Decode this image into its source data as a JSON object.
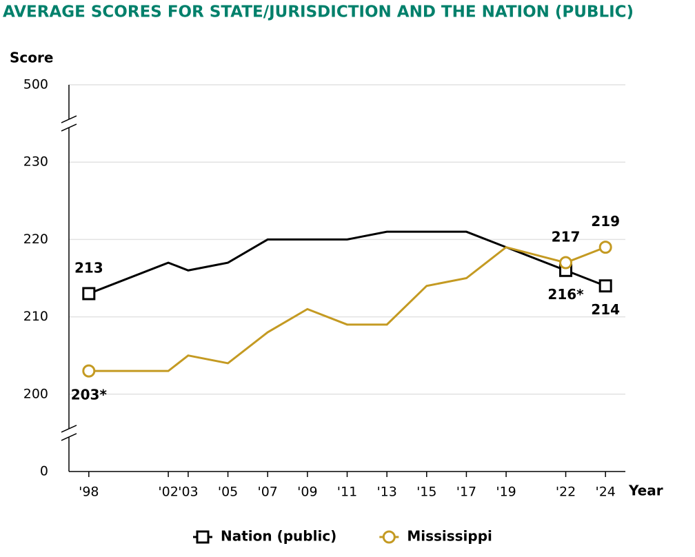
{
  "chart_data": {
    "type": "line",
    "title": "AVERAGE SCORES FOR STATE/JURISDICTION AND THE NATION (PUBLIC)",
    "y_label": "Score",
    "x_label": "Year",
    "x": [
      1998,
      2002,
      2003,
      2005,
      2007,
      2009,
      2011,
      2013,
      2015,
      2017,
      2019,
      2022,
      2024
    ],
    "xlim": [
      1997,
      2025
    ],
    "xticks": [
      {
        "value": 1998,
        "label": "'98"
      },
      {
        "value": 2002,
        "label": "'02"
      },
      {
        "value": 2003,
        "label": "'03"
      },
      {
        "value": 2005,
        "label": "'05"
      },
      {
        "value": 2007,
        "label": "'07"
      },
      {
        "value": 2009,
        "label": "'09"
      },
      {
        "value": 2011,
        "label": "'11"
      },
      {
        "value": 2013,
        "label": "'13"
      },
      {
        "value": 2015,
        "label": "'15"
      },
      {
        "value": 2017,
        "label": "'17"
      },
      {
        "value": 2019,
        "label": "'19"
      },
      {
        "value": 2022,
        "label": "'22"
      },
      {
        "value": 2024,
        "label": "'24"
      }
    ],
    "ylim": [
      0,
      500
    ],
    "yticks": [
      0,
      200,
      210,
      220,
      230,
      500
    ],
    "axis_breaks": [
      [
        0,
        200
      ],
      [
        230,
        500
      ]
    ],
    "grid": true,
    "series": [
      {
        "name": "Nation (public)",
        "color": "#000000",
        "marker": "square",
        "values": [
          213,
          217,
          216,
          217,
          220,
          220,
          220,
          221,
          221,
          221,
          219,
          216,
          214
        ],
        "value_labels": [
          "213",
          null,
          null,
          null,
          null,
          null,
          null,
          null,
          null,
          null,
          null,
          "216*",
          "214"
        ]
      },
      {
        "name": "Mississippi",
        "color": "#c49a22",
        "marker": "circle",
        "values": [
          203,
          203,
          205,
          204,
          208,
          211,
          209,
          209,
          214,
          215,
          219,
          217,
          219
        ],
        "value_labels": [
          "203*",
          null,
          null,
          null,
          null,
          null,
          null,
          null,
          null,
          null,
          null,
          "217",
          "219"
        ]
      }
    ],
    "legend": "bottom"
  }
}
